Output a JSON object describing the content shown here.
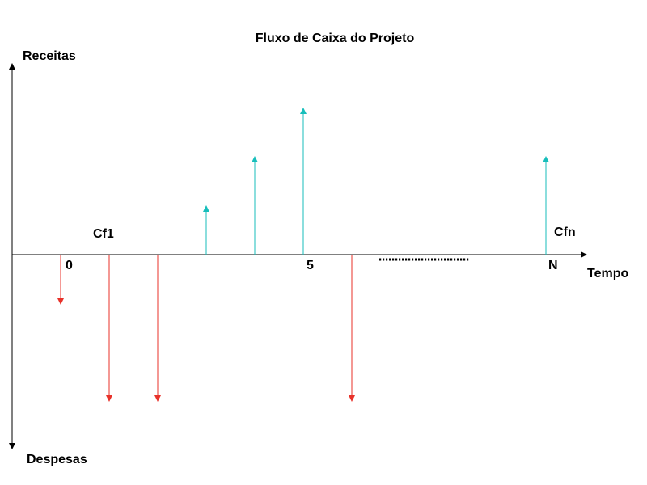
{
  "title": "Fluxo de Caixa do Projeto",
  "labels": {
    "receitas": "Receitas",
    "despesas": "Despesas",
    "tempo": "Tempo",
    "zero": "0",
    "five": "5",
    "n": "N",
    "cf1": "Cf1",
    "cfn": "Cfn"
  },
  "colors": {
    "axis": "#000000",
    "inflow": "#17bebb",
    "outflow": "#e8322a"
  }
}
